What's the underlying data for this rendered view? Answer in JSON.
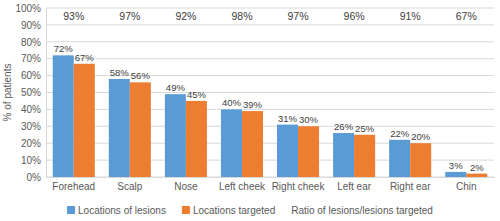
{
  "chart_data": {
    "type": "bar",
    "y_label": "% of patients",
    "categories": [
      "Forehead",
      "Scalp",
      "Nose",
      "Left cheek",
      "Right cheek",
      "Left ear",
      "Right ear",
      "Chin"
    ],
    "series": [
      {
        "name": "Locations of lesions",
        "color": "#5b9bd5",
        "values": [
          72,
          58,
          49,
          40,
          31,
          26,
          22,
          3
        ],
        "value_labels": [
          "72%",
          "58%",
          "49%",
          "40%",
          "31%",
          "26%",
          "22%",
          "3%"
        ]
      },
      {
        "name": "Locations targeted",
        "color": "#ed7d31",
        "values": [
          67,
          56,
          45,
          39,
          30,
          25,
          20,
          2
        ],
        "value_labels": [
          "67%",
          "56%",
          "45%",
          "39%",
          "30%",
          "25%",
          "20%",
          "2%"
        ]
      },
      {
        "name": "Ratio of lesions/lesions targeted",
        "type": "text",
        "values": [
          93,
          97,
          92,
          98,
          97,
          96,
          91,
          67
        ],
        "value_labels": [
          "93%",
          "97%",
          "92%",
          "98%",
          "97%",
          "96%",
          "91%",
          "67%"
        ]
      }
    ],
    "ylim": [
      0,
      100
    ],
    "yticks": [
      {
        "value": 0,
        "label": "0%"
      },
      {
        "value": 10,
        "label": "10%"
      },
      {
        "value": 20,
        "label": "20%"
      },
      {
        "value": 30,
        "label": "30%"
      },
      {
        "value": 40,
        "label": "40%"
      },
      {
        "value": 50,
        "label": "50%"
      },
      {
        "value": 60,
        "label": "60%"
      },
      {
        "value": 70,
        "label": "70%"
      },
      {
        "value": 80,
        "label": "80%"
      },
      {
        "value": 90,
        "label": "90%"
      },
      {
        "value": 100,
        "label": "100%"
      }
    ],
    "grid": true,
    "data_labels": true,
    "legend": "bottom"
  }
}
